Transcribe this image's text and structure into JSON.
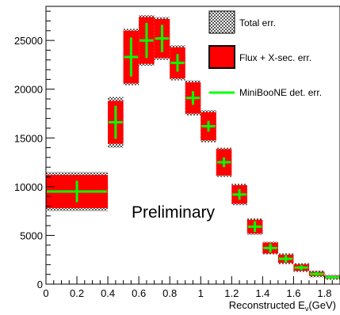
{
  "chart_data": {
    "type": "bar",
    "xlabel_main": "Reconstructed E",
    "xlabel_sub": "ν",
    "xlabel_unit": "(GeV)",
    "xlim": [
      0,
      1.9
    ],
    "ylim": [
      0,
      28500
    ],
    "x_ticks": [
      "0",
      "0.2",
      "0.4",
      "0.6",
      "0.8",
      "1",
      "1.2",
      "1.4",
      "1.6",
      "1.8"
    ],
    "x_tick_values": [
      0,
      0.2,
      0.4,
      0.6,
      0.8,
      1.0,
      1.2,
      1.4,
      1.6,
      1.8
    ],
    "y_ticks": [
      "0",
      "5000",
      "10000",
      "15000",
      "20000",
      "25000"
    ],
    "y_tick_values": [
      0,
      5000,
      10000,
      15000,
      20000,
      25000
    ],
    "annotation": "Preliminary",
    "legend": {
      "placement": "top-right",
      "entries": [
        {
          "key": "total",
          "label": "Total err."
        },
        {
          "key": "flux",
          "label": "Flux + X-sec. err."
        },
        {
          "key": "det",
          "label": "MiniBooNE det. err."
        }
      ]
    },
    "colors": {
      "flux_fill": "#ff0000",
      "det_line": "#00ff00",
      "total_hatch_dark": "#555555",
      "total_hatch_light": "#ffffff",
      "axis": "#000000"
    },
    "bins": [
      {
        "x_low": 0.0,
        "x_high": 0.4,
        "value": 9500,
        "total_err": 2000,
        "flux_err": 1700,
        "det_err": 1100
      },
      {
        "x_low": 0.4,
        "x_high": 0.5,
        "value": 16600,
        "total_err": 2600,
        "flux_err": 2200,
        "det_err": 1700
      },
      {
        "x_low": 0.5,
        "x_high": 0.6,
        "value": 23300,
        "total_err": 2900,
        "flux_err": 2700,
        "det_err": 2000
      },
      {
        "x_low": 0.6,
        "x_high": 0.7,
        "value": 25000,
        "total_err": 2600,
        "flux_err": 2400,
        "det_err": 1800
      },
      {
        "x_low": 0.7,
        "x_high": 0.8,
        "value": 25200,
        "total_err": 2200,
        "flux_err": 2000,
        "det_err": 1400
      },
      {
        "x_low": 0.8,
        "x_high": 0.9,
        "value": 22700,
        "total_err": 1800,
        "flux_err": 1600,
        "det_err": 900
      },
      {
        "x_low": 0.9,
        "x_high": 1.0,
        "value": 19100,
        "total_err": 1800,
        "flux_err": 1600,
        "det_err": 700
      },
      {
        "x_low": 1.0,
        "x_high": 1.1,
        "value": 16200,
        "total_err": 1650,
        "flux_err": 1450,
        "det_err": 550
      },
      {
        "x_low": 1.1,
        "x_high": 1.2,
        "value": 12500,
        "total_err": 1500,
        "flux_err": 1350,
        "det_err": 500
      },
      {
        "x_low": 1.2,
        "x_high": 1.3,
        "value": 9200,
        "total_err": 1100,
        "flux_err": 950,
        "det_err": 550
      },
      {
        "x_low": 1.3,
        "x_high": 1.4,
        "value": 5900,
        "total_err": 850,
        "flux_err": 700,
        "det_err": 550
      },
      {
        "x_low": 1.4,
        "x_high": 1.5,
        "value": 3700,
        "total_err": 650,
        "flux_err": 550,
        "det_err": 450
      },
      {
        "x_low": 1.5,
        "x_high": 1.6,
        "value": 2600,
        "total_err": 550,
        "flux_err": 420,
        "det_err": 380
      },
      {
        "x_low": 1.6,
        "x_high": 1.7,
        "value": 1700,
        "total_err": 450,
        "flux_err": 330,
        "det_err": 250
      },
      {
        "x_low": 1.7,
        "x_high": 1.8,
        "value": 1050,
        "total_err": 350,
        "flux_err": 220,
        "det_err": 180
      },
      {
        "x_low": 1.8,
        "x_high": 1.9,
        "value": 700,
        "total_err": 250,
        "flux_err": 150,
        "det_err": 130
      }
    ]
  }
}
